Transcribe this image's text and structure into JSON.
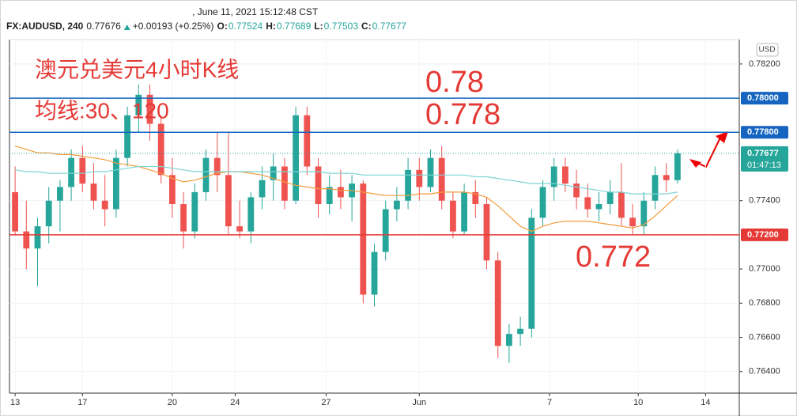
{
  "chart_data": {
    "type": "candlestick",
    "header": {
      "timestamp": ", June 11, 2021 15:12:48 CST",
      "symbol": "FX:AUDUSD, 240",
      "last": "0.77676",
      "change": "+0.00193 (+0.25%)",
      "o_label": "O:",
      "o": "0.77524",
      "h_label": "H:",
      "h": "0.77689",
      "l_label": "L:",
      "l": "0.77503",
      "c_label": "C:",
      "c": "0.77677"
    },
    "currency": "USD",
    "price_tag": {
      "value": 0.77677,
      "label": "0.77677",
      "countdown": "01:47:13",
      "color": "#26a69a"
    },
    "up_color": "#26a69a",
    "down_color": "#ef5350",
    "ylim": [
      0.76283,
      0.78343
    ],
    "yticks": [
      {
        "value": 0.782,
        "label": "0.78200"
      },
      {
        "value": 0.774,
        "label": "0.77400"
      },
      {
        "value": 0.77,
        "label": "0.77000"
      },
      {
        "value": 0.768,
        "label": "0.76800"
      },
      {
        "value": 0.766,
        "label": "0.76600"
      },
      {
        "value": 0.764,
        "label": "0.76400"
      }
    ],
    "xlim": [
      -0.5,
      64.5
    ],
    "xticks": [
      {
        "value": 0,
        "label": "13"
      },
      {
        "value": 6,
        "label": "17"
      },
      {
        "value": 14,
        "label": "20"
      },
      {
        "value": 19.6,
        "label": "24"
      },
      {
        "value": 27.7,
        "label": "27"
      },
      {
        "value": 36,
        "label": "Jun"
      },
      {
        "value": 47.6,
        "label": "7"
      },
      {
        "value": 55.5,
        "label": "10"
      },
      {
        "value": 61.5,
        "label": "14"
      }
    ],
    "grid": true,
    "ohlc": [
      [
        0.7745,
        0.776,
        0.772,
        0.7722
      ],
      [
        0.7722,
        0.774,
        0.77,
        0.7712
      ],
      [
        0.7712,
        0.773,
        0.769,
        0.7725
      ],
      [
        0.7725,
        0.7748,
        0.7715,
        0.774
      ],
      [
        0.774,
        0.7752,
        0.7722,
        0.7748
      ],
      [
        0.7748,
        0.777,
        0.774,
        0.7765
      ],
      [
        0.7765,
        0.7772,
        0.7745,
        0.775
      ],
      [
        0.775,
        0.7762,
        0.7735,
        0.774
      ],
      [
        0.774,
        0.7755,
        0.7725,
        0.7735
      ],
      [
        0.7735,
        0.777,
        0.773,
        0.7765
      ],
      [
        0.7765,
        0.7795,
        0.776,
        0.779
      ],
      [
        0.779,
        0.7808,
        0.778,
        0.7802
      ],
      [
        0.7802,
        0.7808,
        0.7775,
        0.7785
      ],
      [
        0.7785,
        0.779,
        0.775,
        0.7755
      ],
      [
        0.7755,
        0.7765,
        0.773,
        0.7738
      ],
      [
        0.7738,
        0.7745,
        0.7712,
        0.7722
      ],
      [
        0.7722,
        0.775,
        0.7718,
        0.7745
      ],
      [
        0.7745,
        0.777,
        0.774,
        0.7765
      ],
      [
        0.7765,
        0.778,
        0.7745,
        0.7755
      ],
      [
        0.7755,
        0.778,
        0.772,
        0.7725
      ],
      [
        0.7725,
        0.774,
        0.7718,
        0.7722
      ],
      [
        0.7722,
        0.7745,
        0.7715,
        0.7742
      ],
      [
        0.7742,
        0.776,
        0.7735,
        0.7752
      ],
      [
        0.7752,
        0.7768,
        0.774,
        0.776
      ],
      [
        0.776,
        0.7765,
        0.7735,
        0.774
      ],
      [
        0.774,
        0.7795,
        0.7738,
        0.779
      ],
      [
        0.779,
        0.7795,
        0.7755,
        0.776
      ],
      [
        0.776,
        0.7765,
        0.773,
        0.7738
      ],
      [
        0.7738,
        0.7755,
        0.7732,
        0.7748
      ],
      [
        0.7748,
        0.7758,
        0.7735,
        0.7742
      ],
      [
        0.7742,
        0.7755,
        0.7728,
        0.775
      ],
      [
        0.775,
        0.7752,
        0.768,
        0.7685
      ],
      [
        0.7685,
        0.7715,
        0.7678,
        0.771
      ],
      [
        0.771,
        0.774,
        0.7705,
        0.7735
      ],
      [
        0.7735,
        0.7748,
        0.7728,
        0.774
      ],
      [
        0.774,
        0.7765,
        0.7735,
        0.7758
      ],
      [
        0.7758,
        0.7765,
        0.774,
        0.7748
      ],
      [
        0.7748,
        0.777,
        0.7745,
        0.7765
      ],
      [
        0.7765,
        0.7772,
        0.7735,
        0.774
      ],
      [
        0.774,
        0.7745,
        0.7718,
        0.7722
      ],
      [
        0.7722,
        0.775,
        0.772,
        0.7745
      ],
      [
        0.7745,
        0.7752,
        0.773,
        0.7738
      ],
      [
        0.7738,
        0.7742,
        0.77,
        0.7705
      ],
      [
        0.7705,
        0.771,
        0.7648,
        0.7655
      ],
      [
        0.7655,
        0.7668,
        0.7645,
        0.7662
      ],
      [
        0.7662,
        0.7672,
        0.7655,
        0.7665
      ],
      [
        0.7665,
        0.7735,
        0.766,
        0.773
      ],
      [
        0.773,
        0.7752,
        0.7725,
        0.7748
      ],
      [
        0.7748,
        0.7765,
        0.774,
        0.776
      ],
      [
        0.776,
        0.7765,
        0.7745,
        0.775
      ],
      [
        0.775,
        0.7758,
        0.7735,
        0.7742
      ],
      [
        0.7742,
        0.775,
        0.773,
        0.7735
      ],
      [
        0.7735,
        0.7745,
        0.7728,
        0.7738
      ],
      [
        0.7738,
        0.7752,
        0.7732,
        0.7745
      ],
      [
        0.7745,
        0.7762,
        0.7725,
        0.773
      ],
      [
        0.773,
        0.7738,
        0.772,
        0.7725
      ],
      [
        0.7725,
        0.7745,
        0.772,
        0.774
      ],
      [
        0.774,
        0.776,
        0.7735,
        0.7755
      ],
      [
        0.7755,
        0.7762,
        0.7745,
        0.7752
      ],
      [
        0.7752,
        0.777,
        0.775,
        0.77677
      ]
    ],
    "series": [
      {
        "color": "#f39c3c",
        "values": [
          0.7772,
          0.777,
          0.7768,
          0.7768,
          0.7767,
          0.7767,
          0.7766,
          0.7765,
          0.7764,
          0.7762,
          0.7761,
          0.776,
          0.7758,
          0.7756,
          0.7753,
          0.7751,
          0.7752,
          0.7754,
          0.7756,
          0.7757,
          0.7757,
          0.7756,
          0.7755,
          0.7753,
          0.7751,
          0.7749,
          0.7748,
          0.7747,
          0.7747,
          0.7746,
          0.7746,
          0.7745,
          0.7744,
          0.7743,
          0.7743,
          0.7743,
          0.7744,
          0.7744,
          0.7745,
          0.7745,
          0.7745,
          0.7744,
          0.7742,
          0.7737,
          0.7731,
          0.7725,
          0.7722,
          0.7725,
          0.7727,
          0.7728,
          0.7728,
          0.7728,
          0.7727,
          0.7726,
          0.7725,
          0.7724,
          0.7726,
          0.7731,
          0.7737,
          0.7743
        ]
      },
      {
        "color": "#7fd4d4",
        "values": [
          0.7758,
          0.7757,
          0.7757,
          0.7756,
          0.7756,
          0.7756,
          0.7756,
          0.7757,
          0.7757,
          0.7758,
          0.7759,
          0.776,
          0.776,
          0.776,
          0.7759,
          0.7758,
          0.7757,
          0.7757,
          0.7757,
          0.7757,
          0.7757,
          0.7757,
          0.7757,
          0.7757,
          0.7757,
          0.7757,
          0.7757,
          0.7757,
          0.7756,
          0.7756,
          0.7756,
          0.7755,
          0.7755,
          0.7755,
          0.7755,
          0.7755,
          0.7755,
          0.7755,
          0.7755,
          0.7755,
          0.7755,
          0.7754,
          0.7754,
          0.7753,
          0.7752,
          0.7751,
          0.775,
          0.775,
          0.775,
          0.7749,
          0.7748,
          0.7747,
          0.7746,
          0.7745,
          0.7745,
          0.7744,
          0.7744,
          0.7744,
          0.7744,
          0.7745
        ]
      }
    ],
    "levels": [
      {
        "value": 0.78,
        "label": "0.78000",
        "color": "#1565c0"
      },
      {
        "value": 0.778,
        "label": "0.77800",
        "color": "#1565c0"
      },
      {
        "value": 0.772,
        "label": "0.77200",
        "color": "#e53935"
      }
    ],
    "annotations": [
      {
        "text": "澳元兑美元4小时K线",
        "size": 28
      },
      {
        "text": "均线:30、120",
        "size": 28
      },
      {
        "text": "0.78",
        "size": 38
      },
      {
        "text": "0.778",
        "size": 38
      },
      {
        "text": "0.772",
        "size": 38
      }
    ]
  }
}
